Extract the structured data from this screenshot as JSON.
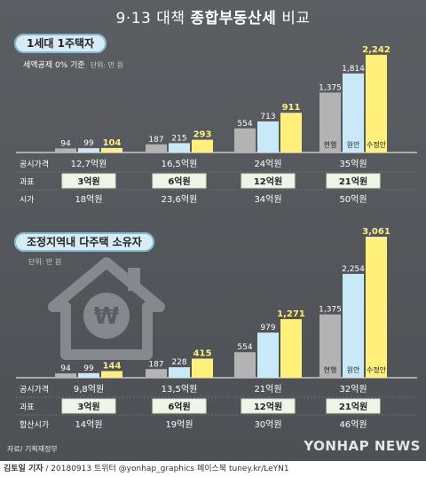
{
  "title_prefix": "9·13 대책 ",
  "title_bold": "종합부동산세",
  "title_suffix": " 비교",
  "section1": {
    "label": "1세대 1주택자",
    "note": "세액공제 0% 기준",
    "unit": "단위: 만 원"
  },
  "section2": {
    "label": "조정지역내 다주택 소유자",
    "unit": "단위: 만 원"
  },
  "series_labels": [
    "현행",
    "원안",
    "수정안"
  ],
  "colors": {
    "current": "#b3b3b3",
    "original": "#c8e9f8",
    "revised": "#fff07a",
    "highlight": "#fff07a"
  },
  "chart_data": [
    {
      "type": "bar",
      "categories": [
        "12,7억원",
        "16,5억원",
        "24억원",
        "35억원"
      ],
      "series": [
        {
          "name": "현행",
          "values": [
            94,
            187,
            554,
            1375
          ]
        },
        {
          "name": "원안",
          "values": [
            99,
            215,
            713,
            1814
          ]
        },
        {
          "name": "수정안",
          "values": [
            104,
            293,
            911,
            2242
          ]
        }
      ],
      "value_labels": [
        [
          "94",
          "187",
          "554",
          "1,375"
        ],
        [
          "99",
          "215",
          "713",
          "1,814"
        ],
        [
          "104",
          "293",
          "911",
          "2,242"
        ]
      ],
      "ylim": [
        0,
        2300
      ],
      "table": [
        {
          "label": "공시가격",
          "values": [
            "12,7억원",
            "16,5억원",
            "24억원",
            "35억원"
          ]
        },
        {
          "label": "과표",
          "values": [
            "3억원",
            "6억원",
            "12억원",
            "21억원"
          ],
          "boxed": true
        },
        {
          "label": "시가",
          "values": [
            "18억원",
            "23,6억원",
            "34억원",
            "50억원"
          ]
        }
      ]
    },
    {
      "type": "bar",
      "categories": [
        "9,8억원",
        "13,5억원",
        "21억원",
        "32억원"
      ],
      "series": [
        {
          "name": "현행",
          "values": [
            94,
            187,
            554,
            1375
          ]
        },
        {
          "name": "원안",
          "values": [
            99,
            228,
            979,
            2254
          ]
        },
        {
          "name": "수정안",
          "values": [
            144,
            415,
            1271,
            3061
          ]
        }
      ],
      "value_labels": [
        [
          "94",
          "187",
          "554",
          "1,375"
        ],
        [
          "99",
          "228",
          "979",
          "2,254"
        ],
        [
          "144",
          "415",
          "1,271",
          "3,061"
        ]
      ],
      "ylim": [
        0,
        3100
      ],
      "table": [
        {
          "label": "공시가격",
          "values": [
            "9,8억원",
            "13,5억원",
            "21억원",
            "32억원"
          ]
        },
        {
          "label": "과표",
          "values": [
            "3억원",
            "6억원",
            "12억원",
            "21억원"
          ],
          "boxed": true
        },
        {
          "label": "합산시가",
          "values": [
            "14억원",
            "19억원",
            "30억원",
            "46억원"
          ]
        }
      ]
    }
  ],
  "source": "자료/ 기획재정부",
  "watermark": "YONHAP NEWS",
  "footer": {
    "author": "김토일 기자",
    "rest": " / 20180913  트위터 @yonhap_graphics  페이스북 tuney.kr/LeYN1"
  }
}
